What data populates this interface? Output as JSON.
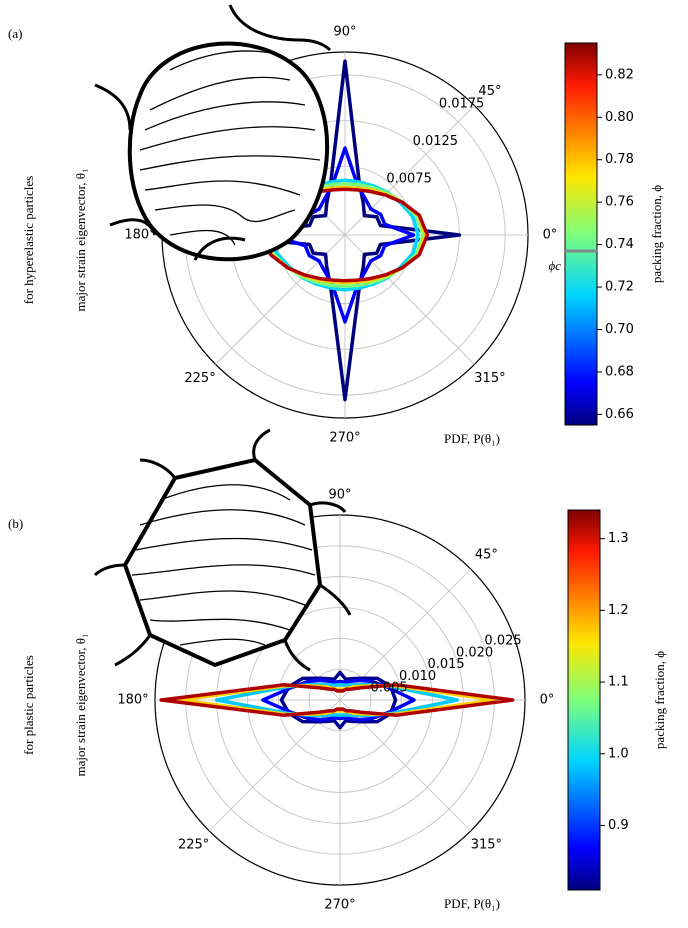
{
  "chart_data": [
    {
      "type": "polar",
      "panel_label": "(a)",
      "side_title": "for hyperelastic particles",
      "ylabel": "major strain eigenvector, θ₁",
      "xlabel": "PDF, P(θ₁)",
      "rlim": [
        0,
        0.02
      ],
      "rticks": [
        0.0075,
        0.0125,
        0.0175
      ],
      "thetaticks": [
        {
          "value": 0,
          "label": "0°"
        },
        {
          "value": 45,
          "label": "45°"
        },
        {
          "value": 90,
          "label": "90°"
        },
        {
          "value": 135,
          "label": null
        },
        {
          "value": 180,
          "label": "180°"
        },
        {
          "value": 225,
          "label": "225°"
        },
        {
          "value": 270,
          "label": "270°"
        },
        {
          "value": 315,
          "label": "315°"
        }
      ],
      "theta": [
        0,
        15,
        30,
        45,
        60,
        75,
        90,
        105,
        120,
        135,
        150,
        165,
        180,
        195,
        210,
        225,
        240,
        255,
        270,
        285,
        300,
        315,
        330,
        345
      ],
      "colorbar": {
        "label": "packing fraction, ϕ",
        "colormap": "jet",
        "lim": [
          0.655,
          0.835
        ],
        "ticks": [
          {
            "value": 0.66,
            "label": "0.66"
          },
          {
            "value": 0.68,
            "label": "0.68"
          },
          {
            "value": 0.7,
            "label": "0.70"
          },
          {
            "value": 0.72,
            "label": "0.72"
          },
          {
            "value": 0.74,
            "label": "0.74"
          },
          {
            "value": 0.76,
            "label": "0.76"
          },
          {
            "value": 0.78,
            "label": "0.78"
          },
          {
            "value": 0.8,
            "label": "0.80"
          },
          {
            "value": 0.82,
            "label": "0.82"
          }
        ],
        "marker": {
          "value": 0.737,
          "label": "ϕc",
          "color": "#7f8c8d"
        }
      },
      "series": [
        {
          "color": "#00007f",
          "values": [
            0.0125,
            0.004,
            0.004,
            0.003,
            0.004,
            0.006,
            0.019,
            0.006,
            0.004,
            0.003,
            0.004,
            0.004,
            0.0145,
            0.004,
            0.004,
            0.003,
            0.004,
            0.006,
            0.018,
            0.006,
            0.004,
            0.003,
            0.004,
            0.004
          ]
        },
        {
          "color": "#0000ff",
          "values": [
            0.0075,
            0.0045,
            0.0045,
            0.004,
            0.0045,
            0.0055,
            0.0095,
            0.0055,
            0.0045,
            0.004,
            0.0045,
            0.0045,
            0.008,
            0.0045,
            0.0045,
            0.004,
            0.0045,
            0.0055,
            0.0095,
            0.0055,
            0.0045,
            0.004,
            0.0045,
            0.0045
          ]
        },
        {
          "color": "#00d4ff",
          "values": [
            0.008,
            0.0077,
            0.007,
            0.0066,
            0.0062,
            0.006,
            0.006,
            0.006,
            0.0062,
            0.0066,
            0.007,
            0.0077,
            0.0082,
            0.0077,
            0.007,
            0.0066,
            0.0062,
            0.006,
            0.006,
            0.006,
            0.0062,
            0.0066,
            0.007,
            0.0077
          ]
        },
        {
          "color": "#7dff7a",
          "values": [
            0.0085,
            0.0081,
            0.0072,
            0.0065,
            0.006,
            0.0057,
            0.0056,
            0.0057,
            0.006,
            0.0065,
            0.0072,
            0.0081,
            0.0086,
            0.0081,
            0.0072,
            0.0065,
            0.006,
            0.0057,
            0.0056,
            0.0057,
            0.006,
            0.0065,
            0.0072,
            0.0081
          ]
        },
        {
          "color": "#ffd000",
          "values": [
            0.0088,
            0.0083,
            0.0072,
            0.0063,
            0.0057,
            0.0053,
            0.0052,
            0.0053,
            0.0057,
            0.0063,
            0.0072,
            0.0083,
            0.0089,
            0.0083,
            0.0072,
            0.0063,
            0.0057,
            0.0053,
            0.0052,
            0.0053,
            0.0057,
            0.0063,
            0.0072,
            0.0083
          ]
        },
        {
          "color": "#b00000",
          "values": [
            0.009,
            0.0084,
            0.0072,
            0.0062,
            0.0055,
            0.0051,
            0.005,
            0.0051,
            0.0055,
            0.0062,
            0.0072,
            0.0084,
            0.0091,
            0.0084,
            0.0072,
            0.0062,
            0.0055,
            0.0051,
            0.005,
            0.0051,
            0.0055,
            0.0062,
            0.0072,
            0.0084
          ]
        }
      ]
    },
    {
      "type": "polar",
      "panel_label": "(b)",
      "side_title": "for plastic particles",
      "ylabel": "major strain eigenvector, θ₁",
      "xlabel": "PDF, P(θ₁)",
      "rlim": [
        0,
        0.03
      ],
      "rticks": [
        0.005,
        {
          "value": 0.01,
          "label": "0.010"
        },
        0.015,
        {
          "value": 0.02,
          "label": "0.020"
        },
        0.025
      ],
      "thetaticks": [
        {
          "value": 0,
          "label": "0°"
        },
        {
          "value": 45,
          "label": "45°"
        },
        {
          "value": 90,
          "label": "90°"
        },
        {
          "value": 135,
          "label": null
        },
        {
          "value": 180,
          "label": "180°"
        },
        {
          "value": 225,
          "label": "225°"
        },
        {
          "value": 270,
          "label": "270°"
        },
        {
          "value": 315,
          "label": "315°"
        }
      ],
      "theta": [
        0,
        15,
        30,
        45,
        60,
        75,
        90,
        105,
        120,
        135,
        150,
        165,
        180,
        195,
        210,
        225,
        240,
        255,
        270,
        285,
        300,
        315,
        330,
        345
      ],
      "colorbar": {
        "label": "packing fraction, ϕ",
        "colormap": "jet",
        "lim": [
          0.81,
          1.34
        ],
        "ticks": [
          0.9,
          {
            "value": 1.0,
            "label": "1.0"
          },
          1.1,
          1.2,
          1.3
        ]
      },
      "series": [
        {
          "color": "#00008f",
          "values": [
            0.009,
            0.0085,
            0.007,
            0.005,
            0.004,
            0.0035,
            0.0045,
            0.0035,
            0.004,
            0.005,
            0.007,
            0.0085,
            0.0095,
            0.0085,
            0.007,
            0.005,
            0.004,
            0.0035,
            0.0045,
            0.0035,
            0.004,
            0.005,
            0.007,
            0.0085
          ]
        },
        {
          "color": "#0000ff",
          "values": [
            0.012,
            0.008,
            0.006,
            0.0045,
            0.0035,
            0.003,
            0.003,
            0.003,
            0.0035,
            0.0045,
            0.006,
            0.008,
            0.0125,
            0.008,
            0.006,
            0.0045,
            0.0035,
            0.003,
            0.003,
            0.003,
            0.0035,
            0.0045,
            0.006,
            0.008
          ]
        },
        {
          "color": "#00c8ff",
          "values": [
            0.019,
            0.0085,
            0.005,
            0.0035,
            0.0028,
            0.0025,
            0.0025,
            0.0025,
            0.0028,
            0.0035,
            0.005,
            0.0085,
            0.02,
            0.0085,
            0.005,
            0.0035,
            0.0028,
            0.0025,
            0.0025,
            0.0025,
            0.0028,
            0.0035,
            0.005,
            0.0085
          ]
        },
        {
          "color": "#ffd000",
          "values": [
            0.025,
            0.009,
            0.0045,
            0.003,
            0.0022,
            0.0018,
            0.0018,
            0.0018,
            0.0022,
            0.003,
            0.0045,
            0.009,
            0.026,
            0.009,
            0.0045,
            0.003,
            0.0022,
            0.0018,
            0.0018,
            0.0018,
            0.0022,
            0.003,
            0.0045,
            0.009
          ]
        },
        {
          "color": "#b00000",
          "values": [
            0.028,
            0.0095,
            0.004,
            0.0025,
            0.002,
            0.0015,
            0.0015,
            0.0015,
            0.002,
            0.0025,
            0.004,
            0.0095,
            0.029,
            0.0095,
            0.004,
            0.0025,
            0.002,
            0.0015,
            0.0015,
            0.0015,
            0.002,
            0.0025,
            0.004,
            0.0095
          ]
        }
      ]
    }
  ]
}
